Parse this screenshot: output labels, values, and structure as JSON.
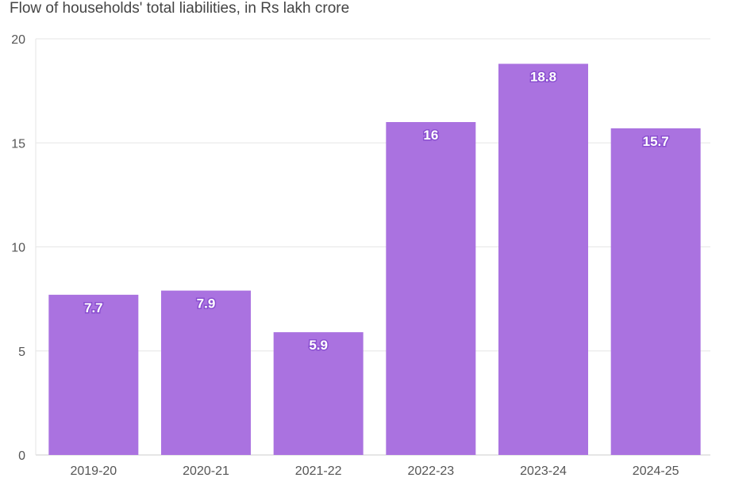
{
  "chart_data": {
    "type": "bar",
    "title": "Flow of households' total liabilities, in Rs lakh crore",
    "categories": [
      "2019-20",
      "2020-21",
      "2021-22",
      "2022-23",
      "2023-24",
      "2024-25"
    ],
    "values": [
      7.7,
      7.9,
      5.9,
      16,
      18.8,
      15.7
    ],
    "value_labels": [
      "7.7",
      "7.9",
      "5.9",
      "16",
      "18.8",
      "15.7"
    ],
    "xlabel": "",
    "ylabel": "",
    "ylim": [
      0,
      20
    ],
    "yticks": [
      0,
      5,
      10,
      15,
      20
    ],
    "grid": true,
    "bar_color": "#aa72e0"
  }
}
